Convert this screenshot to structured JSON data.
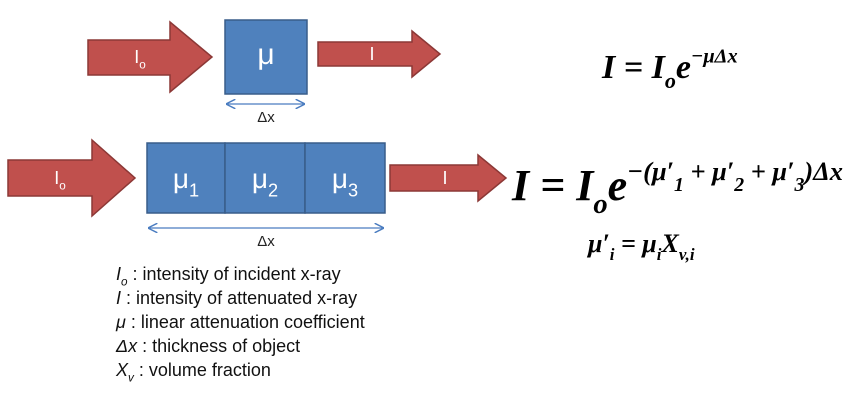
{
  "top": {
    "input_label": [
      {
        "text": "I"
      },
      {
        "text": "o",
        "pos": "sub"
      }
    ],
    "box_label": [
      {
        "text": "μ"
      }
    ],
    "width_label": [
      {
        "text": "Δx"
      }
    ],
    "output_label": [
      {
        "text": "I"
      }
    ]
  },
  "bottom": {
    "input_label": [
      {
        "text": "I"
      },
      {
        "text": "o",
        "pos": "sub"
      }
    ],
    "box_labels": [
      [
        {
          "text": "μ"
        },
        {
          "text": "1",
          "pos": "sub"
        }
      ],
      [
        {
          "text": "μ"
        },
        {
          "text": "2",
          "pos": "sub"
        }
      ],
      [
        {
          "text": "μ"
        },
        {
          "text": "3",
          "pos": "sub"
        }
      ]
    ],
    "width_label": [
      {
        "text": "Δx"
      }
    ],
    "output_label": [
      {
        "text": "I"
      }
    ]
  },
  "equations": [
    [
      {
        "text": "I = I"
      },
      {
        "text": "o",
        "pos": "sub"
      },
      {
        "text": "e"
      },
      {
        "text": "−μΔx",
        "pos": "sup"
      }
    ],
    [
      {
        "text": "I = I"
      },
      {
        "text": "o",
        "pos": "sub"
      },
      {
        "text": "e"
      },
      {
        "text": "−(",
        "pos": "sup"
      },
      {
        "text": "μ′",
        "pos": "sup"
      },
      {
        "text": "1",
        "pos": "supsub"
      },
      {
        "text": " + ",
        "pos": "sup"
      },
      {
        "text": "μ′",
        "pos": "sup"
      },
      {
        "text": "2",
        "pos": "supsub"
      },
      {
        "text": " + ",
        "pos": "sup"
      },
      {
        "text": "μ′",
        "pos": "sup"
      },
      {
        "text": "3",
        "pos": "supsub"
      },
      {
        "text": ")Δx",
        "pos": "sup"
      }
    ],
    [
      {
        "text": "μ′"
      },
      {
        "text": "i",
        "pos": "sub"
      },
      {
        "text": " = μ"
      },
      {
        "text": "i",
        "pos": "sub"
      },
      {
        "text": "X"
      },
      {
        "text": "v,i",
        "pos": "sub"
      }
    ]
  ],
  "legend": [
    [
      {
        "text": "I",
        "style": "italic"
      },
      {
        "text": "o",
        "pos": "sub",
        "style": "italic"
      },
      {
        "text": " : intensity of incident x-ray"
      }
    ],
    [
      {
        "text": "I",
        "style": "italic"
      },
      {
        "text": " : intensity of attenuated x-ray"
      }
    ],
    [
      {
        "text": "μ",
        "style": "italic"
      },
      {
        "text": " : linear attenuation coefficient"
      }
    ],
    [
      {
        "text": "Δx",
        "style": "italic"
      },
      {
        "text": " : thickness of object"
      }
    ],
    [
      {
        "text": "X",
        "style": "italic"
      },
      {
        "text": "v",
        "pos": "sub",
        "style": "italic"
      },
      {
        "text": " : volume fraction"
      }
    ]
  ]
}
